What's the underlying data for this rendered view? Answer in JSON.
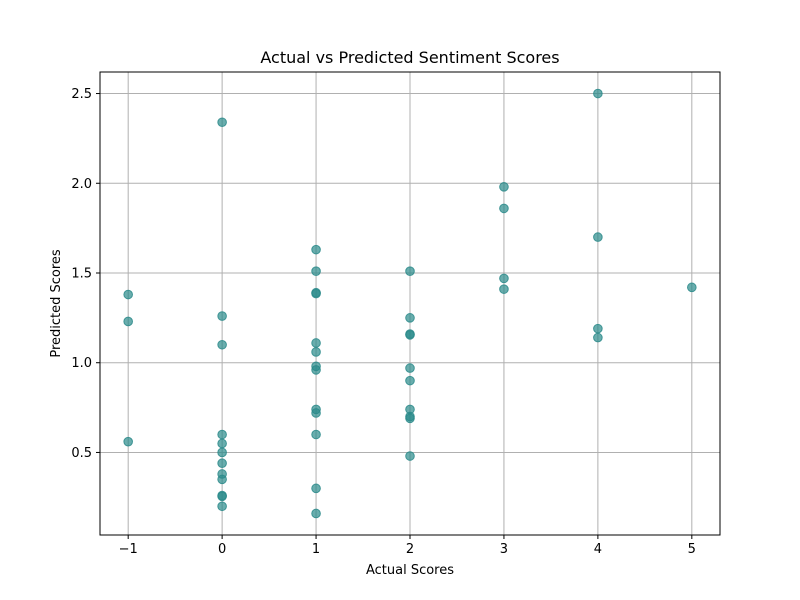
{
  "chart_data": {
    "type": "scatter",
    "title": "Actual vs Predicted Sentiment Scores",
    "xlabel": "Actual Scores",
    "ylabel": "Predicted Scores",
    "xlim": [
      -1.3,
      5.3
    ],
    "ylim": [
      0.04,
      2.62
    ],
    "xticks": [
      -1,
      0,
      1,
      2,
      3,
      4,
      5
    ],
    "xtick_labels": [
      "−1",
      "0",
      "1",
      "2",
      "3",
      "4",
      "5"
    ],
    "yticks": [
      0.5,
      1.0,
      1.5,
      2.0,
      2.5
    ],
    "ytick_labels": [
      "0.5",
      "1.0",
      "1.5",
      "2.0",
      "2.5"
    ],
    "grid": true,
    "marker_color": "#2a8a8a",
    "points": [
      {
        "x": -1,
        "y": 1.38
      },
      {
        "x": -1,
        "y": 1.23
      },
      {
        "x": -1,
        "y": 0.56
      },
      {
        "x": 0,
        "y": 2.34
      },
      {
        "x": 0,
        "y": 1.26
      },
      {
        "x": 0,
        "y": 1.1
      },
      {
        "x": 0,
        "y": 0.6
      },
      {
        "x": 0,
        "y": 0.55
      },
      {
        "x": 0,
        "y": 0.5
      },
      {
        "x": 0,
        "y": 0.44
      },
      {
        "x": 0,
        "y": 0.38
      },
      {
        "x": 0,
        "y": 0.35
      },
      {
        "x": 0,
        "y": 0.26
      },
      {
        "x": 0,
        "y": 0.255
      },
      {
        "x": 0,
        "y": 0.2
      },
      {
        "x": 1,
        "y": 1.63
      },
      {
        "x": 1,
        "y": 1.51
      },
      {
        "x": 1,
        "y": 1.39
      },
      {
        "x": 1,
        "y": 1.385
      },
      {
        "x": 1,
        "y": 1.11
      },
      {
        "x": 1,
        "y": 1.06
      },
      {
        "x": 1,
        "y": 0.98
      },
      {
        "x": 1,
        "y": 0.96
      },
      {
        "x": 1,
        "y": 0.74
      },
      {
        "x": 1,
        "y": 0.72
      },
      {
        "x": 1,
        "y": 0.6
      },
      {
        "x": 1,
        "y": 0.3
      },
      {
        "x": 1,
        "y": 0.16
      },
      {
        "x": 2,
        "y": 1.51
      },
      {
        "x": 2,
        "y": 1.25
      },
      {
        "x": 2,
        "y": 1.16
      },
      {
        "x": 2,
        "y": 1.155
      },
      {
        "x": 2,
        "y": 0.97
      },
      {
        "x": 2,
        "y": 0.9
      },
      {
        "x": 2,
        "y": 0.74
      },
      {
        "x": 2,
        "y": 0.7
      },
      {
        "x": 2,
        "y": 0.69
      },
      {
        "x": 2,
        "y": 0.48
      },
      {
        "x": 3,
        "y": 1.98
      },
      {
        "x": 3,
        "y": 1.86
      },
      {
        "x": 3,
        "y": 1.47
      },
      {
        "x": 3,
        "y": 1.41
      },
      {
        "x": 4,
        "y": 2.5
      },
      {
        "x": 4,
        "y": 1.7
      },
      {
        "x": 4,
        "y": 1.19
      },
      {
        "x": 4,
        "y": 1.14
      },
      {
        "x": 5,
        "y": 1.42
      }
    ]
  }
}
